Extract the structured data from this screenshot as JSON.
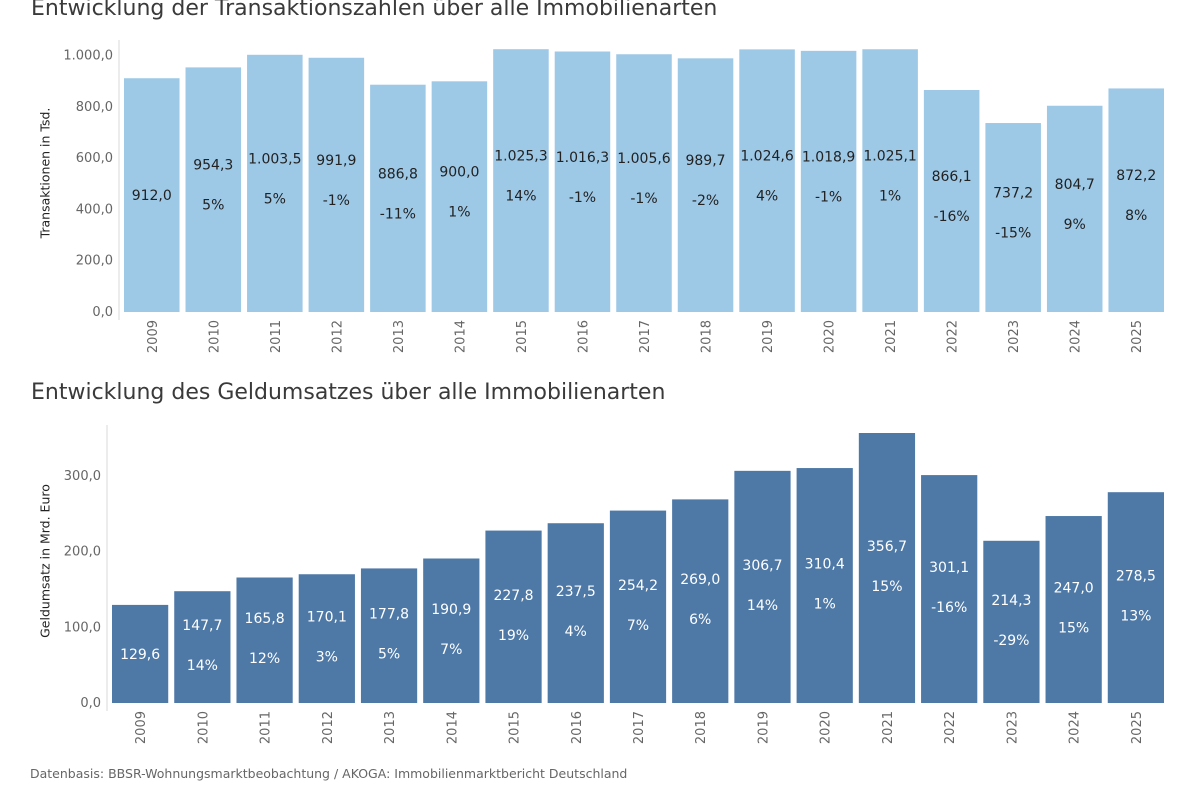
{
  "source": "Datenbasis: BBSR-Wohnungsmarktbeobachtung / AKOGA: Immobilienmarktbericht Deutschland",
  "chart_data": [
    {
      "type": "bar",
      "title": "Entwicklung der Transaktionszahlen über alle Immobilienarten",
      "ylabel": "Transaktionen in Tsd.",
      "xlabel": "",
      "categories": [
        "2009",
        "2010",
        "2011",
        "2012",
        "2013",
        "2014",
        "2015",
        "2016",
        "2017",
        "2018",
        "2019",
        "2020",
        "2021",
        "2022",
        "2023",
        "2024",
        "2025"
      ],
      "values": [
        912.0,
        954.3,
        1003.5,
        991.9,
        886.8,
        900.0,
        1025.3,
        1016.3,
        1005.6,
        989.7,
        1024.6,
        1018.9,
        1025.1,
        866.1,
        737.2,
        804.7,
        872.2
      ],
      "value_labels": [
        "912,0",
        "954,3",
        "1.003,5",
        "991,9",
        "886,8",
        "900,0",
        "1.025,3",
        "1.016,3",
        "1.005,6",
        "989,7",
        "1.024,6",
        "1.018,9",
        "1.025,1",
        "866,1",
        "737,2",
        "804,7",
        "872,2"
      ],
      "change_labels": [
        "",
        "5%",
        "5%",
        "-1%",
        "-11%",
        "1%",
        "14%",
        "-1%",
        "-1%",
        "-2%",
        "4%",
        "-1%",
        "1%",
        "-16%",
        "-15%",
        "9%",
        "8%"
      ],
      "yticks": [
        0,
        200,
        400,
        600,
        800,
        1000
      ],
      "ytick_labels": [
        "0,0",
        "200,0",
        "400,0",
        "600,0",
        "800,0",
        "1.000,0"
      ],
      "ylim": [
        0,
        1030
      ],
      "color": "#9dc8e6",
      "label_color": "#222222",
      "grid": false,
      "legend": "none"
    },
    {
      "type": "bar",
      "title": "Entwicklung des Geldumsatzes über alle Immobilienarten",
      "ylabel": "Geldumsatz in Mrd. Euro",
      "xlabel": "",
      "categories": [
        "2009",
        "2010",
        "2011",
        "2012",
        "2013",
        "2014",
        "2015",
        "2016",
        "2017",
        "2018",
        "2019",
        "2020",
        "2021",
        "2022",
        "2023",
        "2024",
        "2025"
      ],
      "values": [
        129.6,
        147.7,
        165.8,
        170.1,
        177.8,
        190.9,
        227.8,
        237.5,
        254.2,
        269.0,
        306.7,
        310.4,
        356.7,
        301.1,
        214.3,
        247.0,
        278.5
      ],
      "value_labels": [
        "129,6",
        "147,7",
        "165,8",
        "170,1",
        "177,8",
        "190,9",
        "227,8",
        "237,5",
        "254,2",
        "269,0",
        "306,7",
        "310,4",
        "356,7",
        "301,1",
        "214,3",
        "247,0",
        "278,5"
      ],
      "change_labels": [
        "",
        "14%",
        "12%",
        "3%",
        "5%",
        "7%",
        "19%",
        "4%",
        "7%",
        "6%",
        "14%",
        "1%",
        "15%",
        "-16%",
        "-29%",
        "15%",
        "13%"
      ],
      "yticks": [
        0,
        100,
        200,
        300
      ],
      "ytick_labels": [
        "0,0",
        "100,0",
        "200,0",
        "300,0"
      ],
      "ylim": [
        0,
        356.7
      ],
      "color": "#4e79a7",
      "label_color": "#ffffff",
      "grid": false,
      "legend": "none"
    }
  ]
}
